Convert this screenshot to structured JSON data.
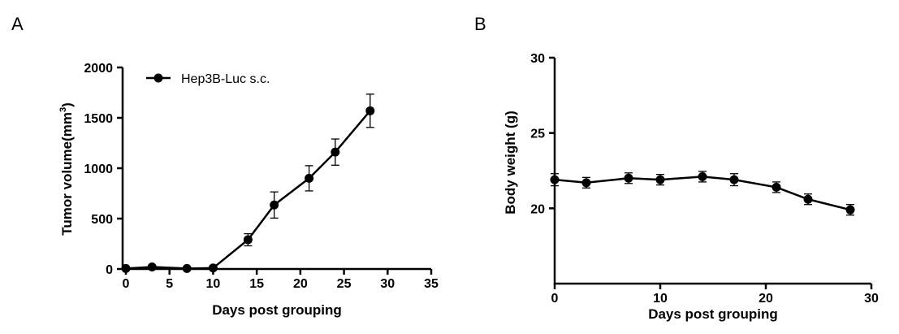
{
  "chart_data": [
    {
      "panel": "A",
      "type": "line",
      "xlabel": "Days post grouping",
      "ylabel_main": "Tumor volume(mm",
      "ylabel_sup": "3",
      "ylabel_tail": ")",
      "xlim": [
        0,
        35
      ],
      "ylim": [
        0,
        2000
      ],
      "xticks": [
        0,
        5,
        10,
        15,
        20,
        25,
        30,
        35
      ],
      "yticks": [
        0,
        500,
        1000,
        1500,
        2000
      ],
      "grid": false,
      "legend_position": "top-left",
      "series": [
        {
          "name": "Hep3B-Luc s.c.",
          "x": [
            0,
            3,
            7,
            10,
            14,
            17,
            21,
            24,
            28
          ],
          "y": [
            5,
            20,
            5,
            10,
            290,
            635,
            900,
            1160,
            1570
          ],
          "err": [
            0,
            10,
            0,
            10,
            60,
            130,
            125,
            130,
            165
          ]
        }
      ]
    },
    {
      "panel": "B",
      "type": "line",
      "xlabel": "Days post grouping",
      "ylabel": "Body weight (g)",
      "xlim": [
        0,
        30
      ],
      "ylim": [
        15,
        30
      ],
      "xticks": [
        0,
        10,
        20,
        30
      ],
      "yticks": [
        20,
        25,
        30
      ],
      "grid": false,
      "series": [
        {
          "x": [
            0,
            3,
            7,
            10,
            14,
            17,
            21,
            24,
            28
          ],
          "y": [
            21.9,
            21.7,
            22.0,
            21.9,
            22.1,
            21.9,
            21.4,
            20.6,
            19.9
          ],
          "err": [
            0.4,
            0.35,
            0.35,
            0.35,
            0.35,
            0.4,
            0.35,
            0.35,
            0.35
          ]
        }
      ]
    }
  ]
}
